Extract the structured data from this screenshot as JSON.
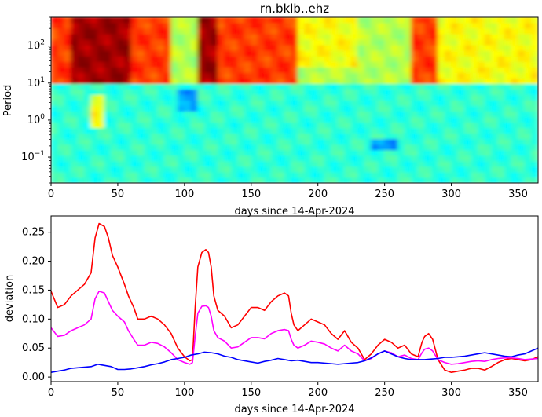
{
  "chart_data": [
    {
      "type": "heatmap",
      "title": "rn.bklb..ehz",
      "xlabel": "days since 14-Apr-2024",
      "ylabel": "Period",
      "xlim": [
        0,
        365
      ],
      "ylim": [
        0.02,
        600
      ],
      "yscale": "log",
      "x_ticks": [
        0,
        50,
        100,
        150,
        200,
        250,
        300,
        350
      ],
      "y_ticks": [
        0.1,
        1,
        10,
        100
      ],
      "y_tick_labels": [
        "10^-1",
        "10^0",
        "10^1",
        "10^2"
      ],
      "colormap": "jet",
      "grid": false,
      "features": [
        {
          "x_range": [
            15,
            58
          ],
          "period_range": [
            10,
            600
          ],
          "level": "very high"
        },
        {
          "x_range": [
            108,
            125
          ],
          "period_range": [
            10,
            600
          ],
          "level": "very high"
        },
        {
          "x_range": [
            0,
            90
          ],
          "period_range": [
            10,
            600
          ],
          "level": "high"
        },
        {
          "x_range": [
            125,
            185
          ],
          "period_range": [
            10,
            600
          ],
          "level": "high"
        },
        {
          "x_range": [
            185,
            230
          ],
          "period_range": [
            30,
            600
          ],
          "level": "moderate"
        },
        {
          "x_range": [
            270,
            290
          ],
          "period_range": [
            10,
            600
          ],
          "level": "high"
        },
        {
          "x_range": [
            290,
            365
          ],
          "period_range": [
            10,
            600
          ],
          "level": "moderate"
        },
        {
          "x_range": [
            0,
            365
          ],
          "period_range": [
            0.02,
            10
          ],
          "level": "low"
        },
        {
          "x_range": [
            30,
            40
          ],
          "period_range": [
            0.6,
            5
          ],
          "level": "moderate"
        },
        {
          "x_range": [
            240,
            262
          ],
          "period_range": [
            0.15,
            0.3
          ],
          "level": "very low"
        },
        {
          "x_range": [
            95,
            110
          ],
          "period_range": [
            2,
            8
          ],
          "level": "very low"
        }
      ]
    },
    {
      "type": "line",
      "title": "",
      "xlabel": "days since 14-Apr-2024",
      "ylabel": "deviation",
      "xlim": [
        0,
        365
      ],
      "ylim": [
        -0.008,
        0.278
      ],
      "x_ticks": [
        0,
        50,
        100,
        150,
        200,
        250,
        300,
        350
      ],
      "y_ticks": [
        0.0,
        0.05,
        0.1,
        0.15,
        0.2,
        0.25
      ],
      "y_tick_labels": [
        "0.00",
        "0.05",
        "0.10",
        "0.15",
        "0.20",
        "0.25"
      ],
      "grid": false,
      "series": [
        {
          "color": "#ff0000",
          "x": [
            0,
            5,
            10,
            15,
            20,
            25,
            30,
            33,
            36,
            40,
            43,
            46,
            50,
            55,
            58,
            62,
            65,
            70,
            75,
            80,
            85,
            90,
            95,
            100,
            104,
            106,
            108,
            110,
            113,
            116,
            118,
            120,
            122,
            125,
            130,
            135,
            140,
            145,
            150,
            155,
            160,
            165,
            170,
            175,
            178,
            180,
            182,
            185,
            190,
            195,
            200,
            205,
            210,
            215,
            220,
            225,
            230,
            235,
            240,
            245,
            250,
            255,
            260,
            265,
            270,
            275,
            278,
            280,
            283,
            286,
            290,
            295,
            300,
            305,
            310,
            315,
            320,
            325,
            330,
            335,
            340,
            345,
            350,
            355,
            360,
            365
          ],
          "values": [
            0.148,
            0.12,
            0.125,
            0.14,
            0.15,
            0.16,
            0.18,
            0.24,
            0.265,
            0.26,
            0.24,
            0.21,
            0.19,
            0.16,
            0.14,
            0.12,
            0.1,
            0.1,
            0.105,
            0.1,
            0.09,
            0.075,
            0.05,
            0.035,
            0.028,
            0.03,
            0.12,
            0.19,
            0.215,
            0.22,
            0.215,
            0.19,
            0.14,
            0.115,
            0.105,
            0.085,
            0.09,
            0.105,
            0.12,
            0.12,
            0.115,
            0.13,
            0.14,
            0.145,
            0.14,
            0.11,
            0.09,
            0.08,
            0.09,
            0.1,
            0.095,
            0.09,
            0.075,
            0.065,
            0.08,
            0.06,
            0.05,
            0.03,
            0.04,
            0.055,
            0.065,
            0.06,
            0.05,
            0.055,
            0.04,
            0.035,
            0.06,
            0.07,
            0.075,
            0.065,
            0.03,
            0.012,
            0.008,
            0.01,
            0.012,
            0.015,
            0.015,
            0.012,
            0.018,
            0.025,
            0.03,
            0.032,
            0.03,
            0.028,
            0.03,
            0.035
          ]
        },
        {
          "color": "#ff00ff",
          "x": [
            0,
            5,
            10,
            15,
            20,
            25,
            30,
            33,
            36,
            40,
            43,
            46,
            50,
            55,
            58,
            62,
            65,
            70,
            75,
            80,
            85,
            90,
            95,
            100,
            104,
            106,
            108,
            110,
            113,
            116,
            118,
            120,
            122,
            125,
            130,
            135,
            140,
            145,
            150,
            155,
            160,
            165,
            170,
            175,
            178,
            180,
            182,
            185,
            190,
            195,
            200,
            205,
            210,
            215,
            220,
            225,
            230,
            235,
            240,
            245,
            250,
            255,
            260,
            265,
            270,
            275,
            278,
            280,
            283,
            286,
            290,
            295,
            300,
            305,
            310,
            315,
            320,
            325,
            330,
            335,
            340,
            345,
            350,
            355,
            360,
            365
          ],
          "values": [
            0.085,
            0.07,
            0.072,
            0.08,
            0.085,
            0.09,
            0.1,
            0.135,
            0.148,
            0.145,
            0.13,
            0.115,
            0.105,
            0.095,
            0.08,
            0.065,
            0.055,
            0.055,
            0.06,
            0.058,
            0.052,
            0.042,
            0.03,
            0.025,
            0.022,
            0.025,
            0.07,
            0.11,
            0.122,
            0.123,
            0.12,
            0.105,
            0.08,
            0.068,
            0.062,
            0.05,
            0.052,
            0.06,
            0.068,
            0.068,
            0.066,
            0.075,
            0.08,
            0.082,
            0.08,
            0.065,
            0.055,
            0.05,
            0.055,
            0.062,
            0.06,
            0.057,
            0.05,
            0.045,
            0.055,
            0.045,
            0.04,
            0.028,
            0.032,
            0.04,
            0.045,
            0.042,
            0.035,
            0.038,
            0.032,
            0.03,
            0.042,
            0.048,
            0.05,
            0.045,
            0.03,
            0.025,
            0.022,
            0.023,
            0.025,
            0.027,
            0.028,
            0.027,
            0.03,
            0.032,
            0.033,
            0.033,
            0.032,
            0.03,
            0.031,
            0.032
          ]
        },
        {
          "color": "#0000ff",
          "x": [
            0,
            5,
            10,
            15,
            20,
            25,
            30,
            35,
            40,
            45,
            50,
            55,
            60,
            65,
            70,
            75,
            80,
            85,
            90,
            95,
            100,
            105,
            110,
            115,
            120,
            125,
            130,
            135,
            140,
            145,
            150,
            155,
            160,
            165,
            170,
            175,
            180,
            185,
            190,
            195,
            200,
            205,
            210,
            215,
            220,
            225,
            230,
            235,
            240,
            245,
            250,
            255,
            260,
            265,
            270,
            275,
            280,
            285,
            290,
            295,
            300,
            305,
            310,
            315,
            320,
            325,
            330,
            335,
            340,
            345,
            350,
            355,
            360,
            365
          ],
          "values": [
            0.008,
            0.01,
            0.012,
            0.015,
            0.016,
            0.017,
            0.018,
            0.022,
            0.02,
            0.018,
            0.013,
            0.013,
            0.014,
            0.016,
            0.018,
            0.021,
            0.023,
            0.026,
            0.03,
            0.032,
            0.034,
            0.038,
            0.04,
            0.043,
            0.042,
            0.04,
            0.036,
            0.034,
            0.03,
            0.028,
            0.026,
            0.024,
            0.027,
            0.029,
            0.032,
            0.03,
            0.028,
            0.029,
            0.027,
            0.025,
            0.025,
            0.024,
            0.023,
            0.022,
            0.023,
            0.024,
            0.025,
            0.028,
            0.033,
            0.04,
            0.045,
            0.04,
            0.035,
            0.032,
            0.03,
            0.03,
            0.03,
            0.031,
            0.032,
            0.034,
            0.034,
            0.035,
            0.036,
            0.038,
            0.04,
            0.042,
            0.04,
            0.038,
            0.036,
            0.035,
            0.038,
            0.04,
            0.045,
            0.05
          ]
        }
      ]
    }
  ]
}
